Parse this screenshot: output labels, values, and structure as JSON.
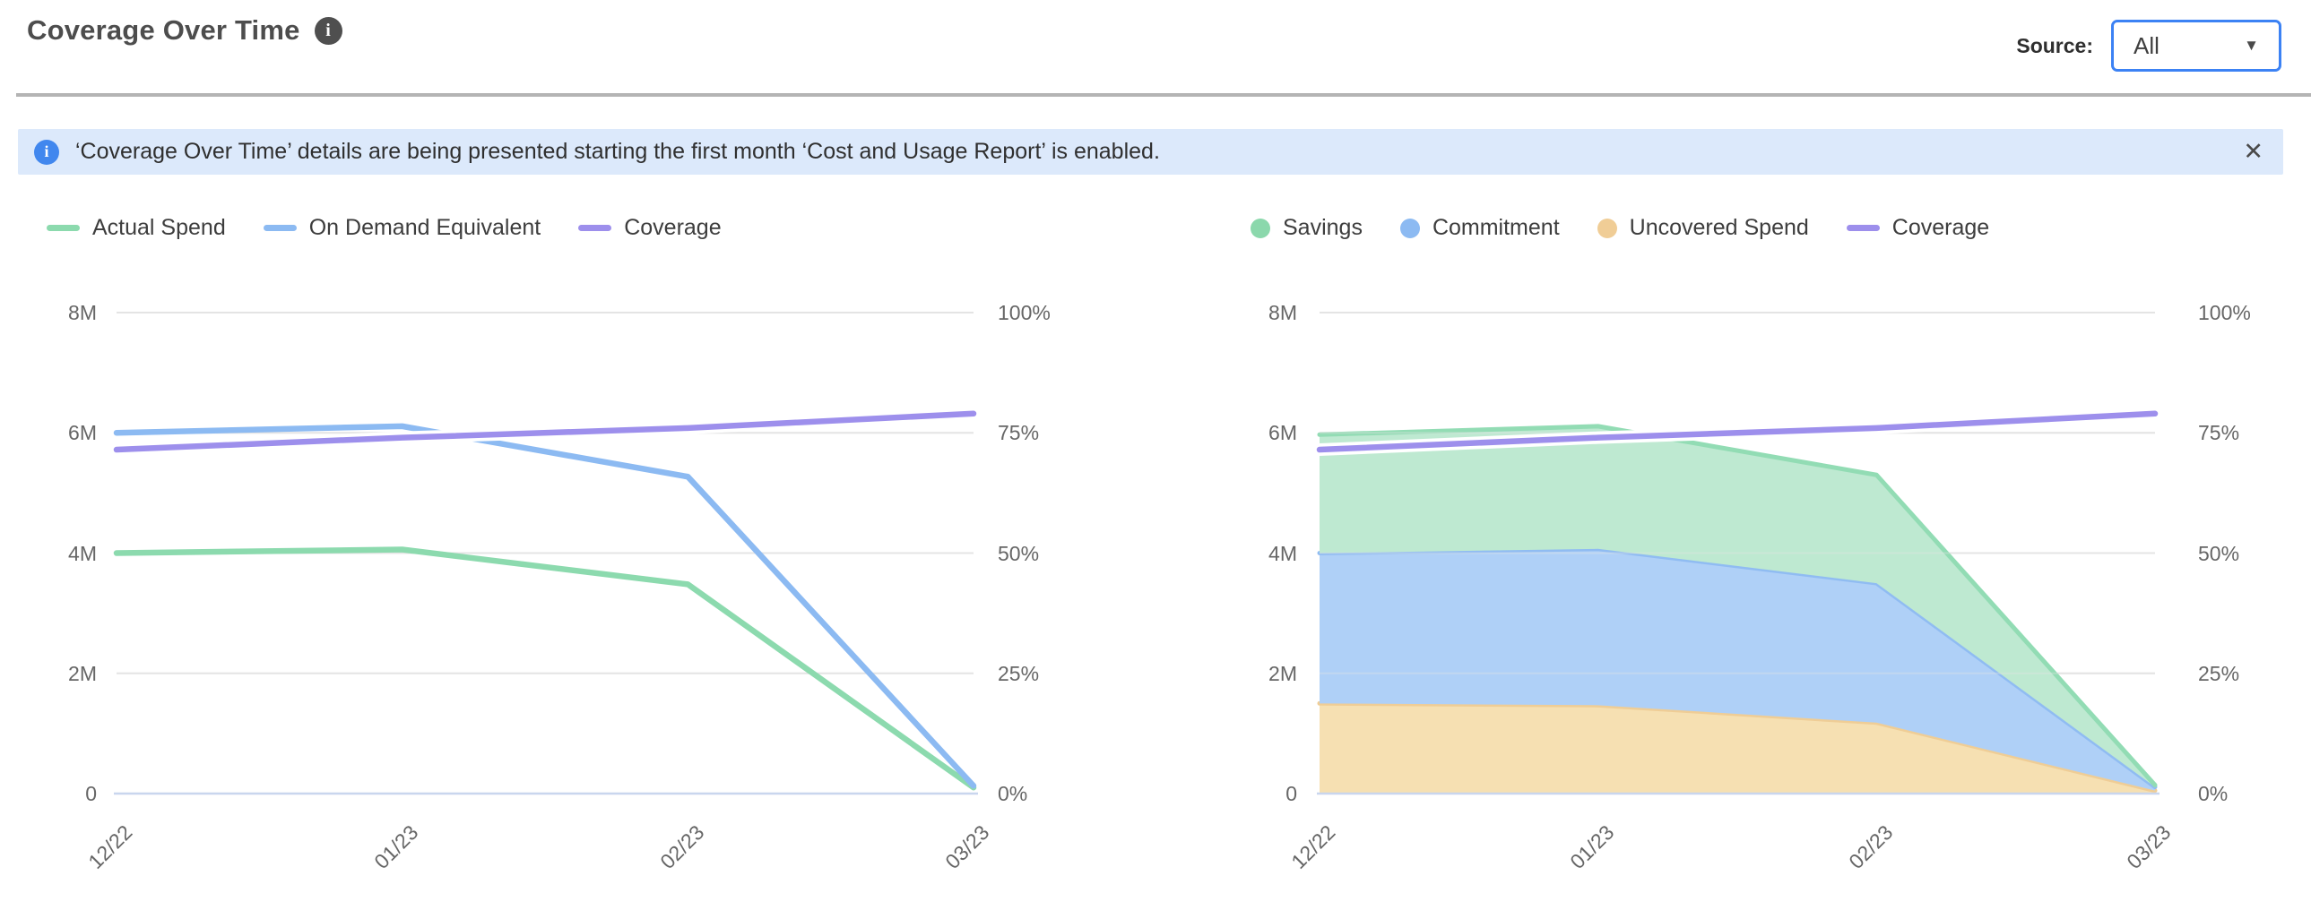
{
  "header": {
    "title": "Coverage Over Time",
    "source_label": "Source:",
    "source_value": "All"
  },
  "icons": {
    "info_glyph": "i",
    "caret_glyph": "▼",
    "close_glyph": "✕"
  },
  "banner": {
    "text": "‘Coverage Over Time’ details are being presented starting the first month ‘Cost and Usage Report’ is enabled."
  },
  "chart_style": {
    "grid_color": "#e4e4e4",
    "baseline_color": "#c9d6ee",
    "axis_text_color": "#666666",
    "coverage_halo": "#ffffff"
  },
  "chart_data": [
    {
      "type": "line",
      "name": "spend-vs-ondemand",
      "categories": [
        "12/22",
        "01/23",
        "02/23",
        "03/23"
      ],
      "y_axis_left": {
        "label_ticks": [
          "8M",
          "6M",
          "4M",
          "2M",
          "0"
        ],
        "max": 8000000,
        "unit": "spend"
      },
      "y_axis_right": {
        "label_ticks": [
          "100%",
          "75%",
          "50%",
          "25%",
          "0%"
        ],
        "max": 100,
        "unit": "percent"
      },
      "grid": true,
      "legend_position": "top-left",
      "legend": [
        {
          "label": "Actual Spend",
          "swatch": "line",
          "color": "#8cdaae"
        },
        {
          "label": "On Demand Equivalent",
          "swatch": "line",
          "color": "#8cbaf2"
        },
        {
          "label": "Coverage",
          "swatch": "line",
          "color": "#9d8fec"
        }
      ],
      "series": [
        {
          "name": "Actual Spend",
          "kind": "line",
          "axis": "left",
          "color": "#8cdaae",
          "values": [
            4000000,
            4060000,
            3480000,
            100000
          ]
        },
        {
          "name": "On Demand Equivalent",
          "kind": "line",
          "axis": "left",
          "color": "#8cbaf2",
          "values": [
            6000000,
            6110000,
            5270000,
            130000
          ]
        },
        {
          "name": "Coverage",
          "kind": "line",
          "axis": "right",
          "color": "#9d8fec",
          "halo": true,
          "values": [
            71.5,
            74,
            76,
            79
          ]
        }
      ]
    },
    {
      "type": "area",
      "name": "savings-breakdown",
      "categories": [
        "12/22",
        "01/23",
        "02/23",
        "03/23"
      ],
      "y_axis_left": {
        "label_ticks": [
          "8M",
          "6M",
          "4M",
          "2M",
          "0"
        ],
        "max": 8000000,
        "unit": "spend"
      },
      "y_axis_right": {
        "label_ticks": [
          "100%",
          "75%",
          "50%",
          "25%",
          "0%"
        ],
        "max": 100,
        "unit": "percent"
      },
      "grid": true,
      "legend_position": "top-left",
      "legend": [
        {
          "label": "Savings",
          "swatch": "dot",
          "color": "#8bd8ac"
        },
        {
          "label": "Commitment",
          "swatch": "dot",
          "color": "#8cbaf2"
        },
        {
          "label": "Uncovered Spend",
          "swatch": "dot",
          "color": "#f0cd96"
        },
        {
          "label": "Coverage",
          "swatch": "line",
          "color": "#9d8fec"
        }
      ],
      "series": [
        {
          "name": "Uncovered Spend",
          "kind": "area",
          "axis": "left",
          "fill": "#f6e0b2",
          "edge": "#efcd96",
          "values": [
            1500000,
            1470000,
            1180000,
            50000
          ]
        },
        {
          "name": "Commitment",
          "kind": "area",
          "axis": "left",
          "fill": "#afd0f7",
          "edge": "#90bcf2",
          "values": [
            2500000,
            2600000,
            2320000,
            60000
          ]
        },
        {
          "name": "Savings",
          "kind": "area",
          "axis": "left",
          "fill": "#bee9d1",
          "edge": "#92dcb4",
          "values": [
            1970000,
            2040000,
            1800000,
            30000
          ]
        },
        {
          "name": "Coverage",
          "kind": "line",
          "axis": "right",
          "color": "#9d8fec",
          "halo": true,
          "values": [
            71.5,
            74,
            76,
            79
          ]
        }
      ]
    }
  ]
}
